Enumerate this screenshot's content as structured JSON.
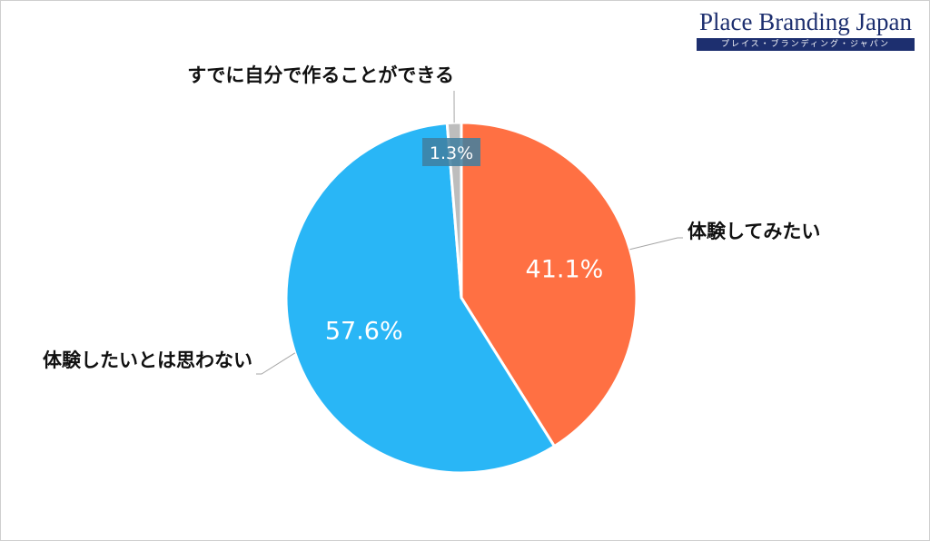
{
  "logo": {
    "title": "Place Branding Japan",
    "subtitle": "プレイス・ブランディング・ジャパン"
  },
  "colors": {
    "orange": "#FF7043",
    "blue": "#29B6F6",
    "gray": "#BDBDBD",
    "logo_navy": "#1D2F6F"
  },
  "chart_data": {
    "type": "pie",
    "categories": [
      "体験してみたい",
      "体験したいとは思わない",
      "すでに自分で作ることができる"
    ],
    "values": [
      41.1,
      57.6,
      1.3
    ],
    "value_labels": [
      "41.1%",
      "57.6%",
      "1.3%"
    ],
    "start": "12 o'clock",
    "direction": "clockwise",
    "legend": "none"
  }
}
